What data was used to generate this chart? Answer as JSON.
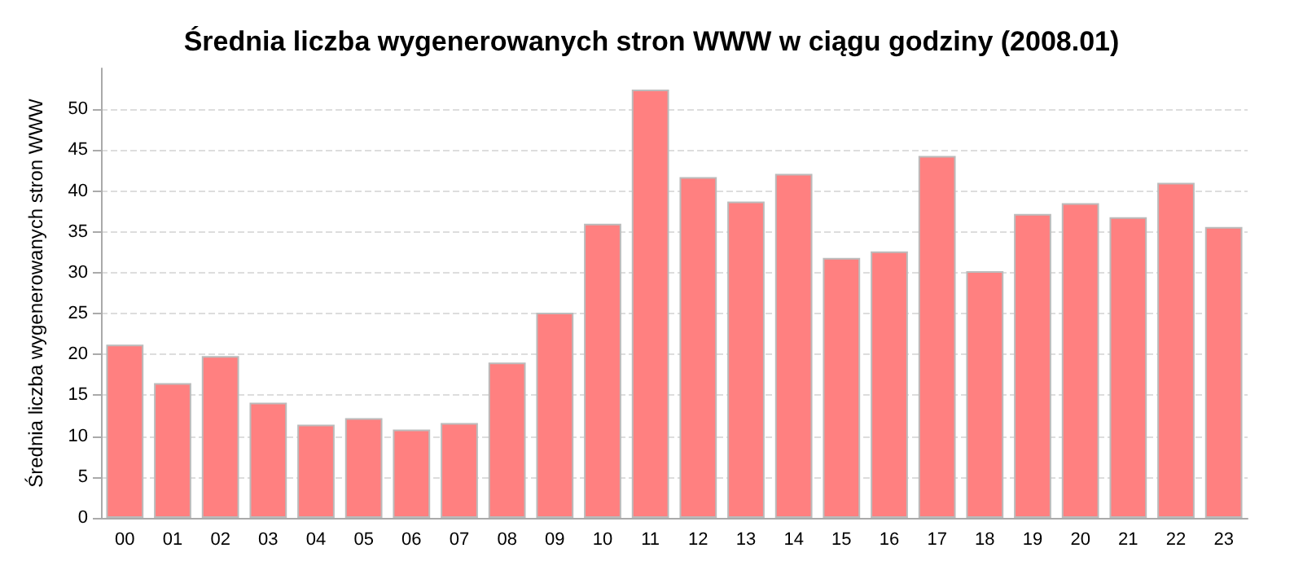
{
  "chart_data": {
    "type": "bar",
    "title": "Średnia liczba wygenerowanych stron WWW w ciągu godziny (2008.01)",
    "ylabel": "Średnia liczba wygenerowanych stron WWW",
    "categories": [
      "00",
      "01",
      "02",
      "03",
      "04",
      "05",
      "06",
      "07",
      "08",
      "09",
      "10",
      "11",
      "12",
      "13",
      "14",
      "15",
      "16",
      "17",
      "18",
      "19",
      "20",
      "21",
      "22",
      "23"
    ],
    "values": [
      21.2,
      16.5,
      19.8,
      14.1,
      11.4,
      12.2,
      10.8,
      11.6,
      19.0,
      25.1,
      36.0,
      52.4,
      41.7,
      38.7,
      42.1,
      31.8,
      32.6,
      44.3,
      30.2,
      37.2,
      38.5,
      36.8,
      41.0,
      35.6
    ],
    "color": "#ff8080",
    "ylim": [
      0,
      55
    ],
    "yticks": [
      0,
      5,
      10,
      15,
      20,
      25,
      30,
      35,
      40,
      45,
      50
    ],
    "grid": "y"
  }
}
